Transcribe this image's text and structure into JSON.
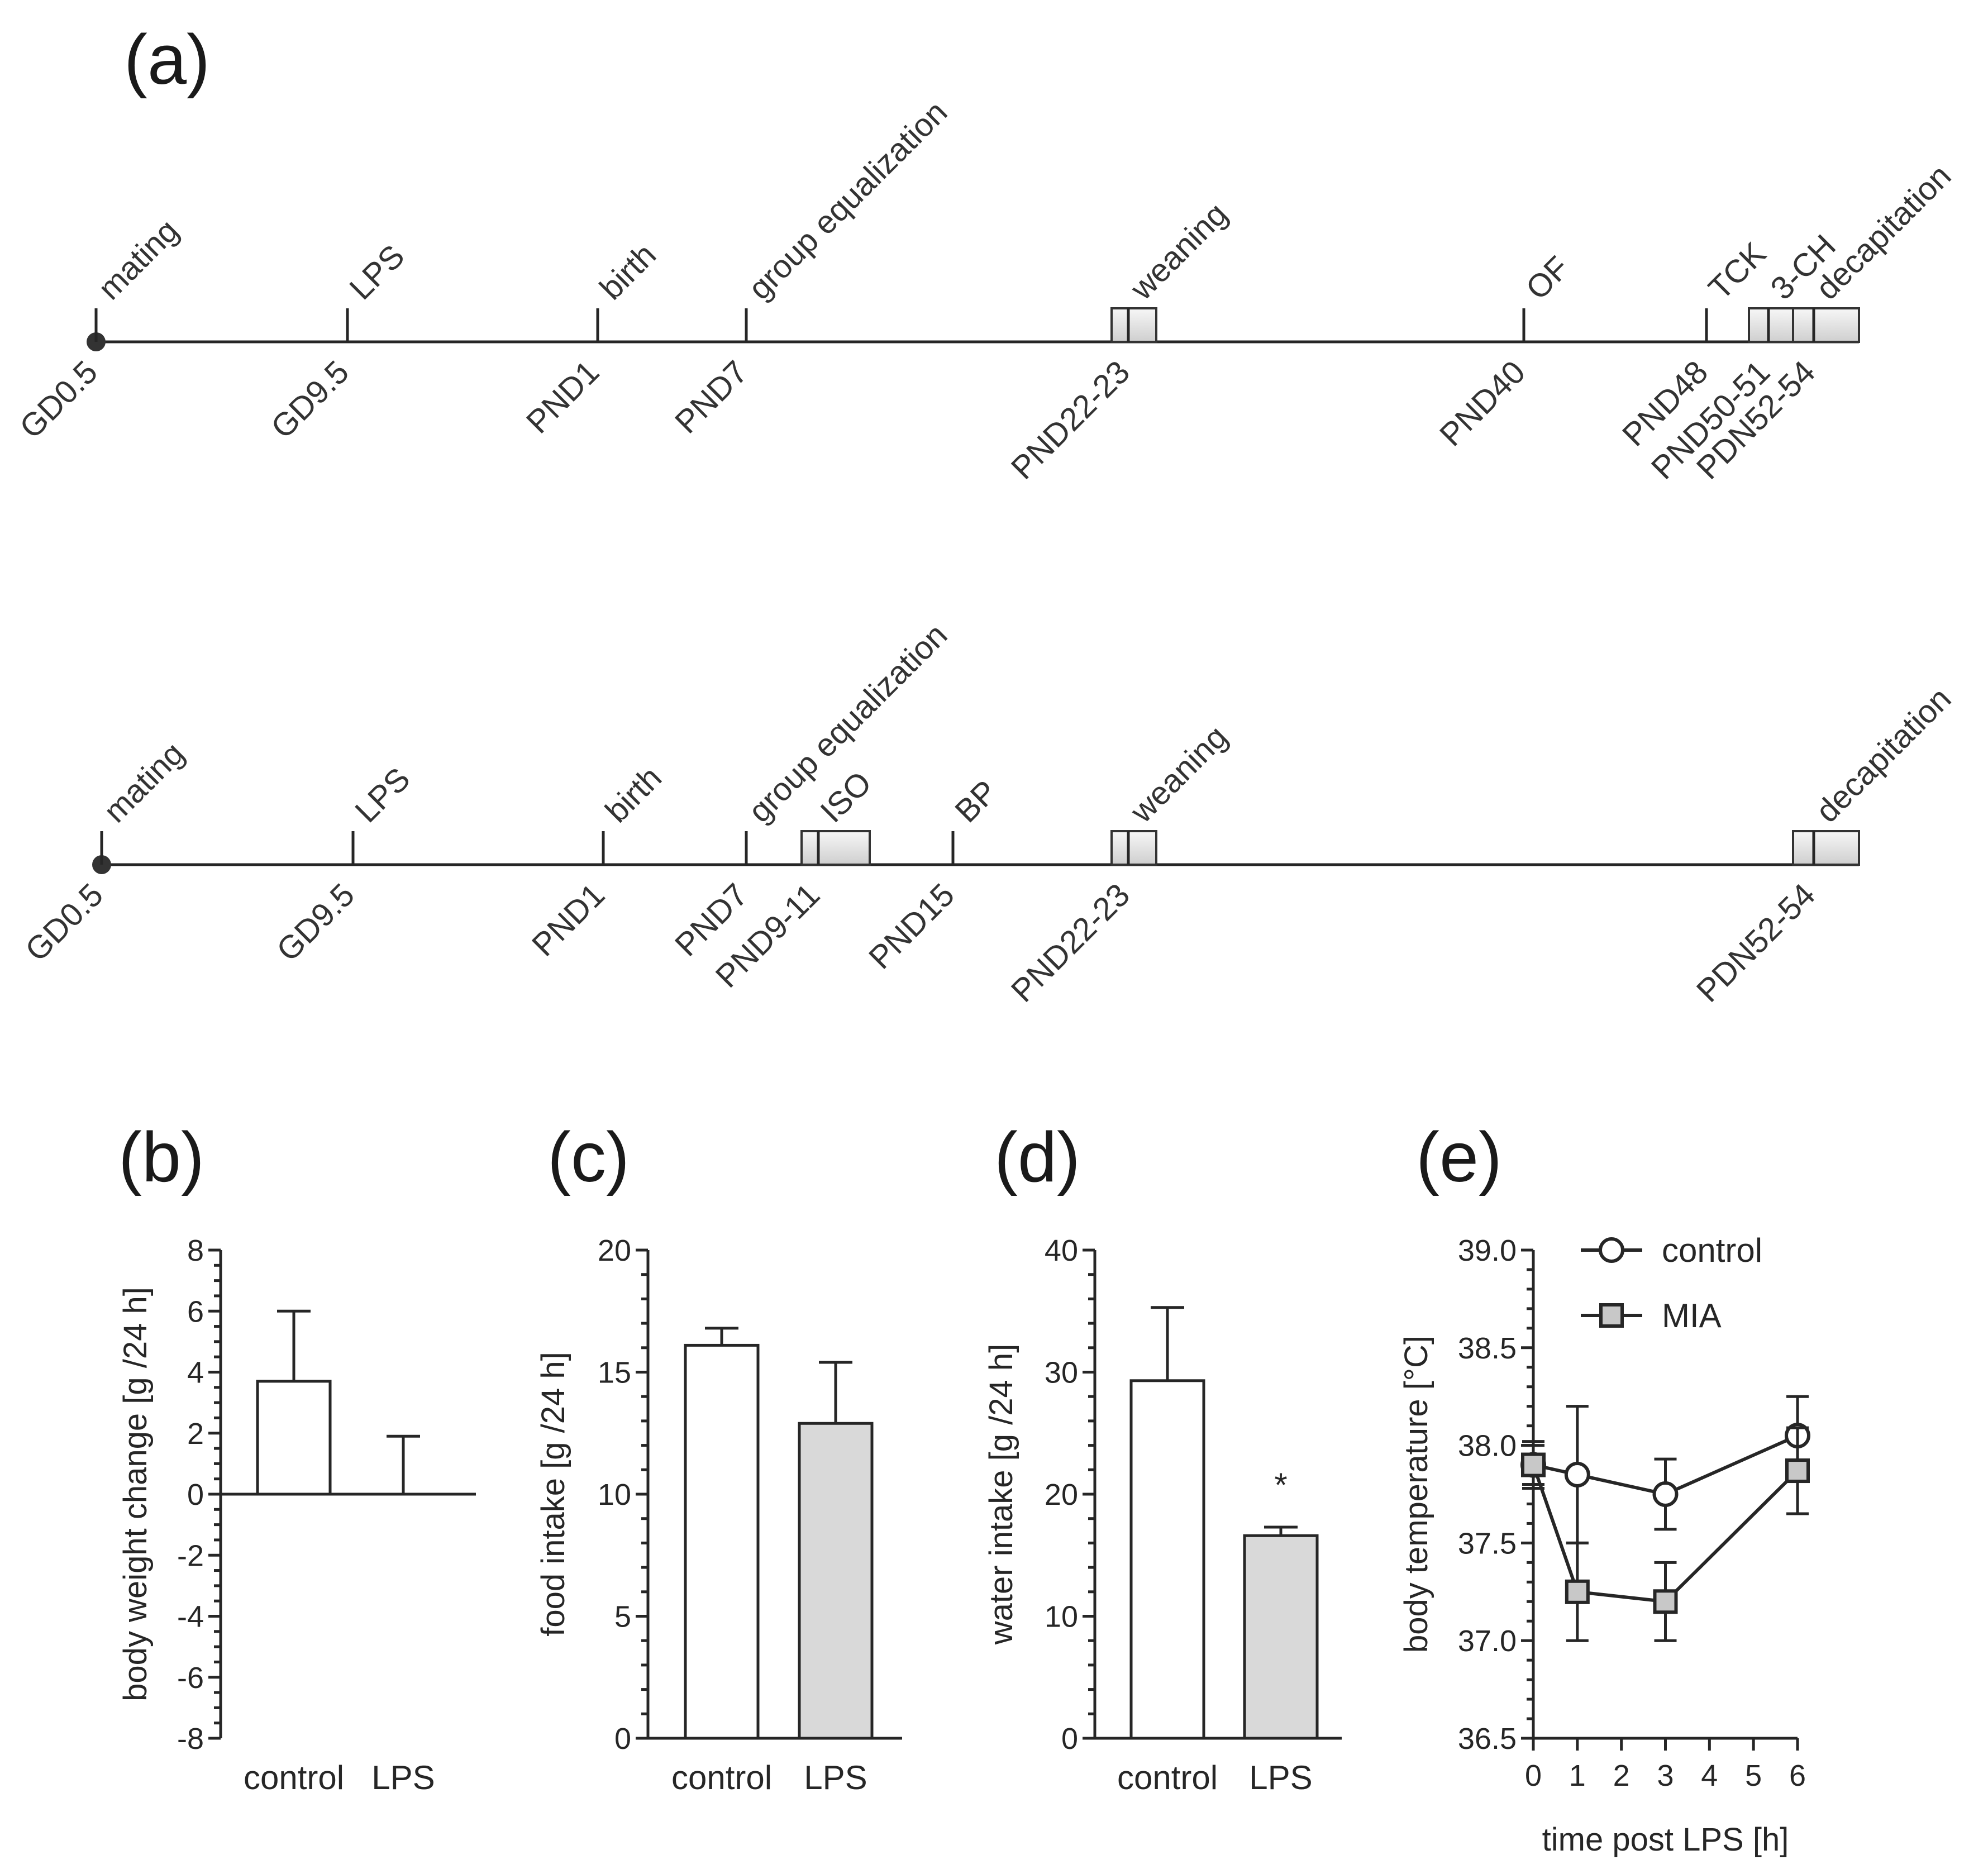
{
  "panel_labels": [
    "(a)",
    "(b)",
    "(c)",
    "(d)",
    "(e)"
  ],
  "timeline_top": {
    "events": [
      {
        "above": "mating",
        "below": "GD0.5"
      },
      {
        "above": "LPS",
        "below": "GD9.5"
      },
      {
        "above": "birth",
        "below": "PND1"
      },
      {
        "above": "group equalization",
        "below": "PND7"
      },
      {
        "above": "weaning",
        "below": "PND22-23"
      },
      {
        "above": "OF",
        "below": "PND40"
      },
      {
        "above": "TCK",
        "below": "PND48"
      },
      {
        "above": "3-CH",
        "below": "PND50-51"
      },
      {
        "above": "decapitation",
        "below": "PDN52-54"
      }
    ]
  },
  "timeline_bottom": {
    "events": [
      {
        "above": "mating",
        "below": "GD0.5"
      },
      {
        "above": "LPS",
        "below": "GD9.5"
      },
      {
        "above": "birth",
        "below": "PND1"
      },
      {
        "above": "group equalization",
        "below": "PND7"
      },
      {
        "above": "ISO",
        "below": "PND9-11"
      },
      {
        "above": "BP",
        "below": "PND15"
      },
      {
        "above": "weaning",
        "below": "PND22-23"
      },
      {
        "above": "decapitation",
        "below": "PDN52-54"
      }
    ]
  },
  "colors": {
    "control": "#ffffff",
    "lps": "#d9d9d9",
    "axis": "#262626",
    "shade": "#e0e0e0"
  },
  "chart_data": [
    {
      "type": "bar",
      "panel": "(b)",
      "ylabel": "body weight change [g /24 h]",
      "categories": [
        "control",
        "LPS"
      ],
      "values": [
        3.7,
        0.0
      ],
      "errors": [
        2.3,
        1.9
      ],
      "ylim": [
        -8,
        8
      ],
      "yticks": [
        "-8",
        "-6",
        "-4",
        "-2",
        "0",
        "2",
        "4",
        "6",
        "8"
      ]
    },
    {
      "type": "bar",
      "panel": "(c)",
      "ylabel": "food intake [g /24 h]",
      "categories": [
        "control",
        "LPS"
      ],
      "values": [
        16.1,
        12.9
      ],
      "errors": [
        0.7,
        2.5
      ],
      "ylim": [
        0,
        20
      ],
      "yticks": [
        "0",
        "5",
        "10",
        "15",
        "20"
      ]
    },
    {
      "type": "bar",
      "panel": "(d)",
      "ylabel": "water intake [g /24 h]",
      "categories": [
        "control",
        "LPS"
      ],
      "values": [
        29.3,
        16.6
      ],
      "errors": [
        6.0,
        0.7
      ],
      "ylim": [
        0,
        40
      ],
      "yticks": [
        "0",
        "10",
        "20",
        "30",
        "40"
      ],
      "annotation": "*"
    },
    {
      "type": "line",
      "panel": "(e)",
      "xlabel": "time post LPS [h]",
      "ylabel": "body temperature [°C]",
      "xlim": [
        0,
        6
      ],
      "ylim": [
        36.5,
        39.0
      ],
      "xticks": [
        "0",
        "1",
        "2",
        "3",
        "4",
        "5",
        "6"
      ],
      "yticks": [
        "36.5",
        "37.0",
        "37.5",
        "38.0",
        "38.5",
        "39.0"
      ],
      "series": [
        {
          "name": "control",
          "x": [
            0,
            1,
            3,
            6
          ],
          "y": [
            37.9,
            37.85,
            37.75,
            38.05
          ],
          "err": [
            0.12,
            0.35,
            0.18,
            0.2
          ]
        },
        {
          "name": "MIA",
          "x": [
            0,
            1,
            3,
            6
          ],
          "y": [
            37.9,
            37.25,
            37.2,
            37.87
          ],
          "err": [
            0.1,
            0.25,
            0.2,
            0.22
          ]
        }
      ]
    }
  ]
}
